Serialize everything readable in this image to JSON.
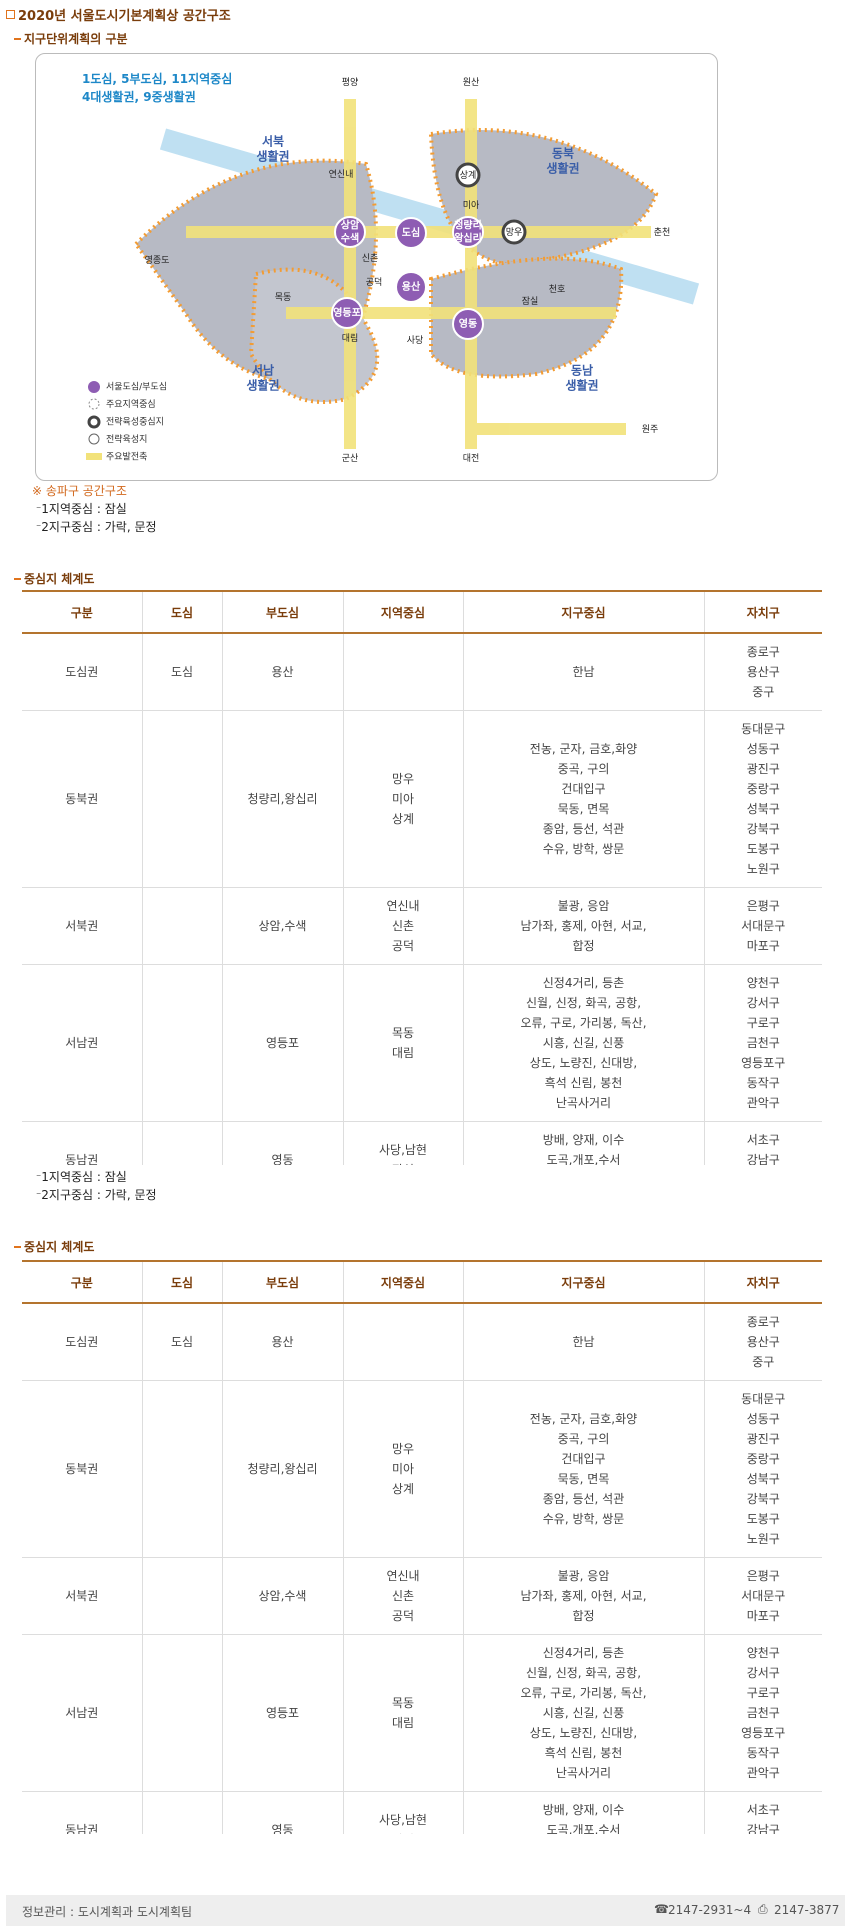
{
  "header": {
    "title": "2020년 서울도시기본계획상 공간구조",
    "subtitle": "지구단위계획의 구분"
  },
  "map": {
    "labels": [
      "1도심, 5부도심, 11지역중심",
      "4대생활권, 9중생활권",
      "평양",
      "원산",
      "춘천",
      "원주",
      "대전",
      "군산",
      "영종도",
      "서북\n생활권",
      "동북\n생활권",
      "서남\n생활권",
      "동남\n생활권",
      "도심",
      "용산",
      "영등포",
      "영동",
      "상암\n수색",
      "청량리\n왕십리",
      "상계",
      "망우",
      "미아",
      "연신내",
      "신촌",
      "공덕",
      "목동",
      "대림",
      "사당",
      "잠실",
      "천호"
    ],
    "legend": [
      "서울도심/부도심",
      "주요지역중심",
      "전략육성중심지",
      "전략육성지",
      "주요발전축"
    ]
  },
  "note": {
    "title": "※ 송파구 공간구조"
  },
  "notes": [
    {
      "items": [
        "1지역중심 : 잠실",
        "2지구중심 : 가락, 문정"
      ]
    },
    {
      "items": [
        "1지역중심 : 잠실",
        "2지구중심 : 가락, 문정"
      ]
    }
  ],
  "sections": [
    {
      "heading": "중심지 체계도",
      "table": {
        "columns": [
          "구분",
          "도심",
          "부도심",
          "지역중심",
          "지구중심",
          "자치구"
        ],
        "rows": [
          [
            "도심권",
            "도심",
            "용산",
            null,
            "한남",
            "종로구\n용산구\n중구"
          ],
          [
            "동북권",
            null,
            "청량리,왕십리",
            "망우\n미아\n상계",
            "전농, 군자, 금호,화양\n중곡, 구의\n건대입구\n묵동, 면목\n종암, 등선, 석관\n수유, 방학, 쌍문",
            "동대문구\n성동구\n광진구\n중랑구\n성북구\n강북구\n도봉구\n노원구"
          ],
          [
            "서북권",
            null,
            "상암,수색",
            "연신내\n신촌\n공덕",
            "불광, 응암\n남가좌, 홍제, 아현, 서교,\n합정",
            "은평구\n서대문구\n마포구"
          ],
          [
            "서남권",
            null,
            "영등포",
            "목동\n대림",
            "신정4거리, 등촌\n신월, 신정, 화곡, 공항,\n오류, 구로, 가리봉, 독산,\n시흥, 신길, 신풍\n상도, 노량진, 신대방,\n흑석 신림, 봉천\n난곡사거리",
            "양천구\n강서구\n구로구\n금천구\n영등포구\n동작구\n관악구"
          ],
          [
            "동남권",
            null,
            "영동",
            "사당,남현\n잠실",
            "방배, 양재, 이수\n도곡,개포,수서\n가락, 문정",
            "서초구\n강남구\n송파구"
          ]
        ]
      }
    },
    {
      "heading": "중심지 체계도",
      "table": {
        "columns": [
          "구분",
          "도심",
          "부도심",
          "지역중심",
          "지구중심",
          "자치구"
        ],
        "rows": [
          [
            "도심권",
            "도심",
            "용산",
            null,
            "한남",
            "종로구\n용산구\n중구"
          ],
          [
            "동북권",
            null,
            "청량리,왕십리",
            "망우\n미아\n상계",
            "전농, 군자, 금호,화양\n중곡, 구의\n건대입구\n묵동, 면목\n종암, 등선, 석관\n수유, 방학, 쌍문",
            "동대문구\n성동구\n광진구\n중랑구\n성북구\n강북구\n도봉구\n노원구"
          ],
          [
            "서북권",
            null,
            "상암,수색",
            "연신내\n신촌\n공덕",
            "불광, 응암\n남가좌, 홍제, 아현, 서교,\n합정",
            "은평구\n서대문구\n마포구"
          ],
          [
            "서남권",
            null,
            "영등포",
            "목동\n대림",
            "신정4거리, 등촌\n신월, 신정, 화곡, 공항,\n오류, 구로, 가리봉, 독산,\n시흥, 신길, 신풍\n상도, 노량진, 신대방,\n흑석 신림, 봉천\n난곡사거리",
            "양천구\n강서구\n구로구\n금천구\n영등포구\n동작구\n관악구"
          ],
          [
            "동남권",
            null,
            "영동",
            "사당,남현\n잠실",
            "방배, 양재, 이수\n도곡,개포,수서\n가락, 문정",
            "서초구\n강남구\n송파구"
          ]
        ]
      }
    }
  ],
  "footer": {
    "info": "정보관리 : 도시계획과 도시계획팀",
    "phone": "2147-2931~4",
    "fax": "2147-3877"
  }
}
